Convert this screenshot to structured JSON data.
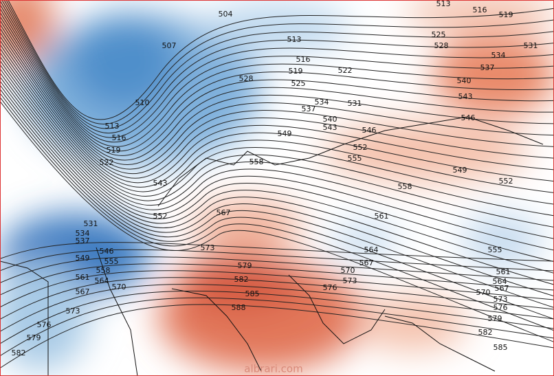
{
  "contour_labels": [
    504,
    513,
    516,
    519,
    507,
    513,
    525,
    528,
    531,
    534,
    516,
    537,
    519,
    522,
    528,
    525,
    540,
    510,
    534,
    531,
    543,
    537,
    540,
    546,
    513,
    543,
    546,
    549,
    516,
    552,
    519,
    555,
    522,
    558,
    549,
    543,
    552,
    558,
    552,
    567,
    561,
    531,
    534,
    537,
    564,
    555,
    546,
    549,
    573,
    567,
    555,
    579,
    558,
    570,
    561,
    561,
    582,
    564,
    573,
    564,
    567,
    570,
    576,
    567,
    585,
    570,
    573,
    576,
    588,
    573,
    579,
    576,
    579,
    582,
    585,
    582
  ],
  "watermark": "albrari.com"
}
